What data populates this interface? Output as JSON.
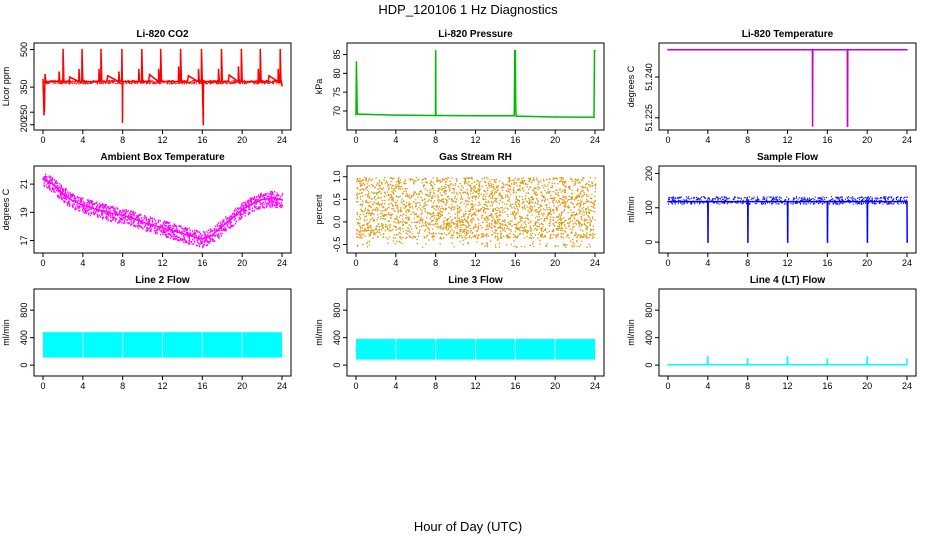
{
  "figure": {
    "title": "HDP_120106  1 Hz Diagnostics",
    "xlabel": "Hour of Day (UTC)"
  },
  "chart_data": [
    {
      "type": "line",
      "title": "Li-820 CO2",
      "ylabel": "Licor ppm",
      "color": "#ff0000",
      "xlim": [
        0,
        24
      ],
      "ylim": [
        195,
        510
      ],
      "xticks": [
        "0",
        "4",
        "8",
        "12",
        "16",
        "20",
        "24"
      ],
      "yticks": [
        "200",
        "250",
        "350",
        "500"
      ],
      "series": [
        {
          "x": [
            0,
            0.1,
            0.15,
            0.2,
            0.3,
            1.0,
            1.6,
            1.62,
            1.7,
            2.0,
            2.02,
            2.1,
            2.6,
            2.7,
            3.6,
            3.62,
            3.7,
            3.9,
            3.92,
            4.0,
            4.4,
            5.6,
            5.62,
            5.7,
            5.8,
            5.82,
            5.9,
            6.4,
            6.5,
            7.6,
            7.62,
            7.7,
            7.9,
            7.92,
            7.96,
            7.98,
            8.0,
            8.1,
            9.6,
            9.62,
            9.7,
            9.9,
            9.92,
            10.0,
            10.6,
            10.7,
            11.6,
            11.62,
            11.7,
            11.8,
            11.82,
            11.9,
            12.6,
            13.6,
            13.62,
            13.7,
            13.8,
            13.82,
            13.9,
            14.5,
            14.6,
            15.6,
            15.62,
            15.7,
            15.9,
            15.92,
            16.0,
            16.1,
            16.12,
            16.2,
            17.6,
            17.62,
            17.7,
            17.9,
            17.92,
            18.0,
            18.6,
            18.7,
            19.6,
            19.62,
            19.7,
            19.9,
            19.92,
            20.0,
            21.6,
            21.62,
            21.7,
            21.8,
            21.82,
            21.9,
            22.6,
            22.7,
            23.6,
            23.62,
            23.7,
            23.8,
            23.82,
            23.9,
            24
          ],
          "y": [
            380,
            240,
            270,
            400,
            372,
            372,
            372,
            410,
            372,
            372,
            500,
            372,
            372,
            390,
            372,
            420,
            372,
            372,
            500,
            372,
            372,
            372,
            420,
            372,
            372,
            500,
            372,
            372,
            395,
            372,
            410,
            372,
            372,
            500,
            372,
            210,
            372,
            372,
            372,
            420,
            372,
            372,
            500,
            372,
            372,
            400,
            372,
            420,
            372,
            372,
            500,
            372,
            372,
            372,
            430,
            372,
            372,
            500,
            372,
            372,
            395,
            372,
            420,
            372,
            372,
            500,
            372,
            200,
            372,
            372,
            372,
            420,
            372,
            372,
            500,
            372,
            372,
            398,
            372,
            430,
            372,
            372,
            500,
            372,
            372,
            420,
            372,
            372,
            500,
            372,
            372,
            395,
            372,
            420,
            372,
            372,
            500,
            372,
            355
          ]
        }
      ]
    },
    {
      "type": "line",
      "title": "Li-820 Pressure",
      "ylabel": "kPa",
      "color": "#00bb00",
      "xlim": [
        0,
        24
      ],
      "ylim": [
        66,
        87
      ],
      "xticks": [
        "0",
        "4",
        "8",
        "12",
        "16",
        "20",
        "24"
      ],
      "yticks": [
        "70",
        "75",
        "80",
        "85"
      ],
      "series": [
        {
          "x": [
            0,
            0.04,
            0.08,
            0.12,
            0.2,
            0.5,
            4.0,
            7.98,
            8.0,
            8.02,
            8.5,
            12.0,
            15.9,
            15.95,
            16.0,
            16.05,
            16.1,
            16.5,
            20.0,
            23.9,
            23.95,
            24
          ],
          "y": [
            69,
            83,
            77,
            69.5,
            69.1,
            69.1,
            68.9,
            68.8,
            86,
            68.8,
            68.8,
            68.7,
            68.7,
            86,
            86,
            70,
            68.6,
            68.6,
            68.4,
            68.3,
            86,
            86
          ]
        }
      ]
    },
    {
      "type": "line",
      "title": "Li-820 Temperature",
      "ylabel": "degrees C",
      "color": "#cc00cc",
      "xlim": [
        0,
        24
      ],
      "ylim": [
        51.222,
        51.251
      ],
      "xticks": [
        "0",
        "4",
        "8",
        "12",
        "16",
        "20",
        "24"
      ],
      "yticks": [
        "51.225",
        "51.240"
      ],
      "series": [
        {
          "x": [
            0,
            14.5,
            14.52,
            14.54,
            18.0,
            18.02,
            18.04,
            18.06,
            24
          ],
          "y": [
            51.25,
            51.25,
            51.222,
            51.25,
            51.25,
            51.222,
            51.222,
            51.25,
            51.25
          ]
        }
      ]
    },
    {
      "type": "line",
      "title": "Ambient Box Temperature",
      "ylabel": "degrees C",
      "color": "#ff00ff",
      "xlim": [
        0,
        24
      ],
      "ylim": [
        16.4,
        22.0
      ],
      "xticks": [
        "0",
        "4",
        "8",
        "12",
        "16",
        "20",
        "24"
      ],
      "yticks": [
        "17",
        "19",
        "21"
      ],
      "series": [
        {
          "x": [
            0,
            1,
            2,
            3,
            4,
            5,
            6,
            7,
            8,
            9,
            10,
            11,
            12,
            13,
            14,
            15,
            16,
            17,
            18,
            19,
            20,
            21,
            22,
            23,
            24
          ],
          "y": [
            21.4,
            21.0,
            20.3,
            19.8,
            19.5,
            19.3,
            19.1,
            18.9,
            18.8,
            18.6,
            18.3,
            18.1,
            17.9,
            17.7,
            17.5,
            17.3,
            17.1,
            17.4,
            18.0,
            18.6,
            19.2,
            19.6,
            19.9,
            20.0,
            19.9
          ]
        }
      ]
    },
    {
      "type": "scatter",
      "title": "Gas Stream RH",
      "ylabel": "percent",
      "color": "#ff8800",
      "color2": "#aaaa00",
      "xlim": [
        0,
        24
      ],
      "ylim": [
        -0.6,
        1.15
      ],
      "xticks": [
        "0",
        "4",
        "8",
        "12",
        "16",
        "20",
        "24"
      ],
      "yticks": [
        "-0.5",
        "0.0",
        "0.5",
        "1.0"
      ],
      "series": [
        {
          "x": [
            0,
            24
          ],
          "y": [
            -0.35,
            1.0
          ]
        }
      ]
    },
    {
      "type": "line",
      "title": "Sample Flow",
      "ylabel": "ml/min",
      "color": "#0000ff",
      "xlim": [
        0,
        24
      ],
      "ylim": [
        -20,
        210
      ],
      "xticks": [
        "0",
        "4",
        "8",
        "12",
        "16",
        "20",
        "24"
      ],
      "yticks": [
        "0",
        "100",
        "200"
      ],
      "series": [
        {
          "x": [
            0,
            4,
            4.02,
            4.04,
            8,
            8.02,
            8.04,
            12,
            12.02,
            12.04,
            16,
            16.02,
            16.04,
            20,
            20.02,
            20.04,
            24,
            24.02
          ],
          "y": [
            118,
            118,
            0,
            118,
            118,
            0,
            118,
            118,
            0,
            118,
            118,
            0,
            118,
            118,
            0,
            118,
            118,
            0
          ]
        }
      ]
    },
    {
      "type": "line",
      "title": "Line 2 Flow",
      "ylabel": "ml/min",
      "color": "#00ffff",
      "xlim": [
        0,
        24
      ],
      "ylim": [
        -100,
        1050
      ],
      "xticks": [
        "0",
        "4",
        "8",
        "12",
        "16",
        "20",
        "24"
      ],
      "yticks": [
        "0",
        "400",
        "800"
      ],
      "series": [
        {
          "x": [
            0,
            4,
            8,
            12,
            16,
            20,
            24
          ],
          "y": [
            250,
            240,
            250,
            245,
            250,
            240,
            245
          ]
        }
      ]
    },
    {
      "type": "line",
      "title": "Line 3 Flow",
      "ylabel": "ml/min",
      "color": "#00ffff",
      "xlim": [
        0,
        24
      ],
      "ylim": [
        -100,
        1050
      ],
      "xticks": [
        "0",
        "4",
        "8",
        "12",
        "16",
        "20",
        "24"
      ],
      "yticks": [
        "0",
        "400",
        "800"
      ],
      "series": [
        {
          "x": [
            0,
            4,
            8,
            12,
            16,
            20,
            24
          ],
          "y": [
            200,
            190,
            195,
            190,
            195,
            190,
            195
          ]
        }
      ]
    },
    {
      "type": "line",
      "title": "Line 4 (LT) Flow",
      "ylabel": "ml/min",
      "color": "#00ffff",
      "xlim": [
        0,
        24
      ],
      "ylim": [
        -100,
        1050
      ],
      "xticks": [
        "0",
        "4",
        "8",
        "12",
        "16",
        "20",
        "24"
      ],
      "yticks": [
        "0",
        "400",
        "800"
      ],
      "series": [
        {
          "x": [
            0,
            3.98,
            4.0,
            4.02,
            7.98,
            8.0,
            8.02,
            11.98,
            12.0,
            12.02,
            15.98,
            16.0,
            16.02,
            19.98,
            20.0,
            20.02,
            23.98,
            24.0
          ],
          "y": [
            5,
            5,
            120,
            5,
            5,
            90,
            5,
            5,
            120,
            5,
            5,
            90,
            5,
            5,
            120,
            5,
            5,
            90
          ]
        }
      ]
    }
  ]
}
